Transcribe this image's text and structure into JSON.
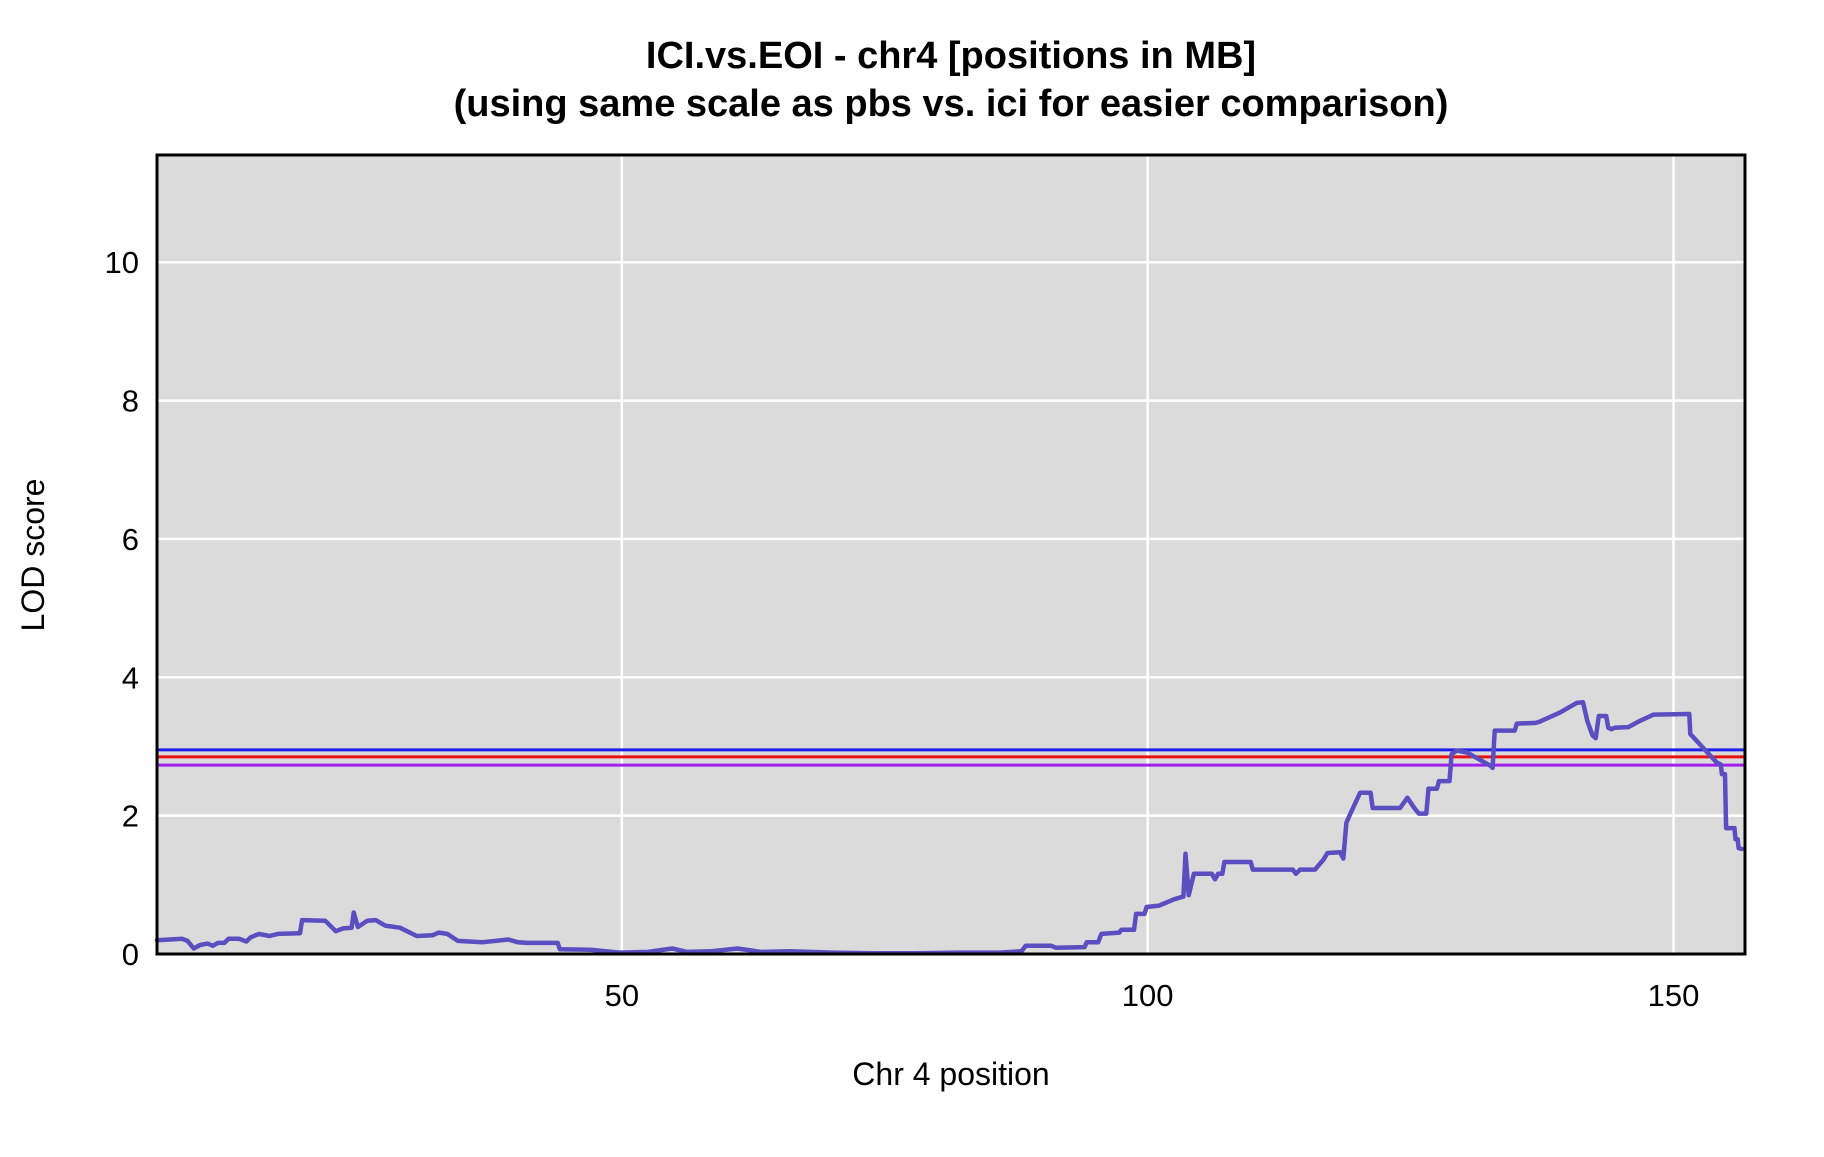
{
  "title": {
    "line1": "ICI.vs.EOI - chr4 [positions in MB]",
    "line2": "(using same scale as pbs vs. ici for easier comparison)"
  },
  "chart_data": {
    "type": "line",
    "title": "ICI.vs.EOI - chr4 [positions in MB]",
    "subtitle": "(using same scale as pbs vs. ici for easier comparison)",
    "xlabel": "Chr 4 position",
    "ylabel": "LOD score",
    "xlim": [
      5.8,
      156.8
    ],
    "ylim": [
      0,
      11.55
    ],
    "x_ticks": [
      50,
      100,
      150
    ],
    "y_ticks": [
      0,
      2,
      4,
      6,
      8,
      10
    ],
    "grid": true,
    "legend": "none",
    "panel_bg": "#DBDBDB",
    "grid_color": "#FFFFFF",
    "border_color": "#000000",
    "thresholds": [
      {
        "name": "threshold-blue",
        "color": "#2020EC",
        "y": 2.95
      },
      {
        "name": "threshold-red",
        "color": "#EC1111",
        "y": 2.85
      },
      {
        "name": "threshold-purple",
        "color": "#A020F0",
        "y": 2.73
      }
    ],
    "series": [
      {
        "name": "LOD curve",
        "color": "#5A4EC1",
        "points": [
          [
            5.8,
            0.2
          ],
          [
            7.0,
            0.21
          ],
          [
            8.2,
            0.22
          ],
          [
            8.7,
            0.19
          ],
          [
            9.3,
            0.08
          ],
          [
            9.9,
            0.13
          ],
          [
            10.6,
            0.15
          ],
          [
            11.1,
            0.12
          ],
          [
            11.6,
            0.16
          ],
          [
            12.2,
            0.16
          ],
          [
            12.6,
            0.22
          ],
          [
            13.6,
            0.22
          ],
          [
            14.3,
            0.18
          ],
          [
            14.7,
            0.24
          ],
          [
            15.5,
            0.29
          ],
          [
            16.5,
            0.26
          ],
          [
            17.3,
            0.29
          ],
          [
            19.4,
            0.3
          ],
          [
            19.6,
            0.49
          ],
          [
            21.8,
            0.48
          ],
          [
            22.8,
            0.33
          ],
          [
            23.5,
            0.37
          ],
          [
            24.3,
            0.38
          ],
          [
            24.5,
            0.6
          ],
          [
            24.9,
            0.39
          ],
          [
            25.8,
            0.48
          ],
          [
            26.6,
            0.49
          ],
          [
            27.5,
            0.41
          ],
          [
            28.9,
            0.38
          ],
          [
            30.5,
            0.26
          ],
          [
            32.0,
            0.27
          ],
          [
            32.6,
            0.31
          ],
          [
            33.4,
            0.29
          ],
          [
            34.4,
            0.19
          ],
          [
            36.8,
            0.17
          ],
          [
            39.2,
            0.21
          ],
          [
            40.1,
            0.17
          ],
          [
            41.0,
            0.16
          ],
          [
            43.9,
            0.16
          ],
          [
            44.1,
            0.07
          ],
          [
            47.0,
            0.06
          ],
          [
            49.8,
            0.02
          ],
          [
            52.5,
            0.03
          ],
          [
            54.8,
            0.08
          ],
          [
            56.2,
            0.03
          ],
          [
            58.5,
            0.04
          ],
          [
            61.0,
            0.08
          ],
          [
            63.2,
            0.03
          ],
          [
            66.0,
            0.04
          ],
          [
            70.0,
            0.02
          ],
          [
            74.0,
            0.01
          ],
          [
            78.0,
            0.01
          ],
          [
            82.0,
            0.02
          ],
          [
            86.0,
            0.02
          ],
          [
            88.0,
            0.04
          ],
          [
            88.4,
            0.12
          ],
          [
            90.8,
            0.12
          ],
          [
            91.3,
            0.09
          ],
          [
            94.0,
            0.1
          ],
          [
            94.2,
            0.17
          ],
          [
            95.3,
            0.17
          ],
          [
            95.6,
            0.29
          ],
          [
            97.3,
            0.31
          ],
          [
            97.5,
            0.35
          ],
          [
            98.7,
            0.35
          ],
          [
            98.9,
            0.58
          ],
          [
            99.7,
            0.58
          ],
          [
            99.9,
            0.68
          ],
          [
            101.1,
            0.7
          ],
          [
            102.5,
            0.79
          ],
          [
            103.4,
            0.83
          ],
          [
            103.6,
            1.45
          ],
          [
            103.9,
            0.85
          ],
          [
            104.4,
            1.16
          ],
          [
            106.1,
            1.16
          ],
          [
            106.4,
            1.08
          ],
          [
            106.7,
            1.16
          ],
          [
            107.1,
            1.16
          ],
          [
            107.3,
            1.33
          ],
          [
            109.8,
            1.33
          ],
          [
            110.0,
            1.22
          ],
          [
            113.8,
            1.22
          ],
          [
            114.1,
            1.16
          ],
          [
            114.5,
            1.22
          ],
          [
            115.9,
            1.22
          ],
          [
            116.7,
            1.36
          ],
          [
            117.1,
            1.46
          ],
          [
            118.3,
            1.47
          ],
          [
            118.6,
            1.38
          ],
          [
            118.9,
            1.9
          ],
          [
            119.4,
            2.07
          ],
          [
            120.2,
            2.33
          ],
          [
            121.2,
            2.33
          ],
          [
            121.4,
            2.11
          ],
          [
            124.0,
            2.11
          ],
          [
            124.7,
            2.26
          ],
          [
            125.4,
            2.1
          ],
          [
            125.8,
            2.03
          ],
          [
            126.5,
            2.03
          ],
          [
            126.7,
            2.39
          ],
          [
            127.5,
            2.39
          ],
          [
            127.7,
            2.5
          ],
          [
            128.7,
            2.5
          ],
          [
            128.9,
            2.89
          ],
          [
            129.4,
            2.94
          ],
          [
            130.4,
            2.91
          ],
          [
            132.6,
            2.72
          ],
          [
            132.8,
            2.69
          ],
          [
            133.0,
            3.23
          ],
          [
            134.9,
            3.23
          ],
          [
            135.1,
            3.33
          ],
          [
            136.9,
            3.34
          ],
          [
            137.3,
            3.36
          ],
          [
            139.2,
            3.49
          ],
          [
            140.8,
            3.63
          ],
          [
            141.4,
            3.64
          ],
          [
            141.8,
            3.37
          ],
          [
            142.3,
            3.16
          ],
          [
            142.6,
            3.12
          ],
          [
            142.9,
            3.44
          ],
          [
            143.6,
            3.44
          ],
          [
            143.8,
            3.27
          ],
          [
            144.1,
            3.25
          ],
          [
            144.4,
            3.27
          ],
          [
            145.7,
            3.28
          ],
          [
            146.8,
            3.37
          ],
          [
            148.1,
            3.46
          ],
          [
            151.5,
            3.47
          ],
          [
            151.6,
            3.18
          ],
          [
            154.1,
            2.77
          ],
          [
            154.5,
            2.74
          ],
          [
            154.6,
            2.6
          ],
          [
            154.9,
            2.6
          ],
          [
            155.0,
            1.82
          ],
          [
            155.8,
            1.82
          ],
          [
            155.9,
            1.66
          ],
          [
            156.1,
            1.66
          ],
          [
            156.2,
            1.53
          ],
          [
            156.5,
            1.52
          ]
        ]
      }
    ]
  }
}
